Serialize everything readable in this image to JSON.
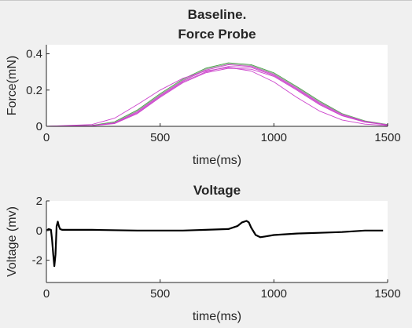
{
  "chart_data": [
    {
      "type": "line",
      "title": [
        "Baseline.",
        "Force Probe"
      ],
      "xlabel": "time(ms)",
      "ylabel": "Force(mN)",
      "xlim": [
        0,
        1500
      ],
      "ylim": [
        0,
        0.45
      ],
      "xticks": [
        0,
        500,
        1000,
        1500
      ],
      "yticks": [
        0,
        0.2,
        0.4
      ],
      "ytick_labels": [
        "0",
        "0.2",
        "0.4"
      ],
      "grid": false,
      "legend": "none",
      "series": [
        {
          "color": "#4aa34a",
          "x": [
            0,
            200,
            300,
            400,
            500,
            600,
            700,
            800,
            900,
            1000,
            1100,
            1200,
            1300,
            1400,
            1500
          ],
          "y": [
            0,
            0.005,
            0.025,
            0.09,
            0.18,
            0.26,
            0.32,
            0.35,
            0.34,
            0.295,
            0.22,
            0.14,
            0.07,
            0.03,
            0.01
          ]
        },
        {
          "color": "#9a9a9a",
          "x": [
            0,
            200,
            300,
            400,
            500,
            600,
            700,
            800,
            900,
            1000,
            1100,
            1200,
            1300,
            1400,
            1500
          ],
          "y": [
            0,
            0.004,
            0.02,
            0.085,
            0.175,
            0.255,
            0.315,
            0.345,
            0.335,
            0.29,
            0.215,
            0.135,
            0.068,
            0.028,
            0.009
          ]
        },
        {
          "color": "#cc44cc",
          "x": [
            0,
            200,
            300,
            400,
            500,
            600,
            700,
            800,
            900,
            1000,
            1100,
            1200,
            1300,
            1400,
            1500
          ],
          "y": [
            0,
            0.004,
            0.02,
            0.08,
            0.17,
            0.25,
            0.31,
            0.34,
            0.33,
            0.285,
            0.21,
            0.13,
            0.065,
            0.027,
            0.008
          ]
        },
        {
          "color": "#cc44cc",
          "x": [
            0,
            200,
            300,
            400,
            500,
            600,
            700,
            800,
            900,
            1000,
            1100,
            1200,
            1300,
            1400,
            1500
          ],
          "y": [
            0,
            0.003,
            0.018,
            0.075,
            0.165,
            0.245,
            0.3,
            0.33,
            0.325,
            0.28,
            0.205,
            0.125,
            0.06,
            0.025,
            0.008
          ]
        },
        {
          "color": "#cc44cc",
          "x": [
            0,
            200,
            300,
            400,
            500,
            600,
            700,
            800,
            900,
            1000,
            1100,
            1200,
            1300,
            1400,
            1500
          ],
          "y": [
            0,
            0.003,
            0.015,
            0.07,
            0.16,
            0.24,
            0.295,
            0.32,
            0.315,
            0.275,
            0.2,
            0.12,
            0.058,
            0.023,
            0.007
          ]
        },
        {
          "color": "#cc44cc",
          "x": [
            0,
            200,
            300,
            400,
            500,
            600,
            700,
            800,
            900,
            1000,
            1100,
            1200,
            1300,
            1400,
            1500
          ],
          "y": [
            0,
            0.01,
            0.045,
            0.12,
            0.2,
            0.265,
            0.305,
            0.325,
            0.305,
            0.245,
            0.16,
            0.085,
            0.035,
            0.012,
            0.004
          ]
        }
      ]
    },
    {
      "type": "line",
      "title": "Voltage",
      "xlabel": "time(ms)",
      "ylabel": "Voltage (mv)",
      "xlim": [
        0,
        1500
      ],
      "ylim": [
        -3.5,
        2
      ],
      "xticks": [
        0,
        500,
        1000,
        1500
      ],
      "yticks": [
        2,
        0,
        -2
      ],
      "ytick_labels": [
        "2",
        "0",
        "-2"
      ],
      "grid": false,
      "legend": "none",
      "series": [
        {
          "color": "#000000",
          "x": [
            0,
            10,
            20,
            25,
            30,
            35,
            40,
            45,
            50,
            55,
            60,
            70,
            100,
            200,
            400,
            600,
            800,
            840,
            860,
            880,
            890,
            900,
            920,
            940,
            960,
            1000,
            1100,
            1200,
            1300,
            1400,
            1480
          ],
          "y": [
            0,
            0.1,
            0.05,
            -0.6,
            -1.6,
            -2.4,
            -1.6,
            0.3,
            0.6,
            0.3,
            0.1,
            0.05,
            0.05,
            0.05,
            0.0,
            0.0,
            0.1,
            0.3,
            0.55,
            0.65,
            0.55,
            0.2,
            -0.3,
            -0.45,
            -0.4,
            -0.3,
            -0.2,
            -0.15,
            -0.1,
            0.0,
            0.0
          ]
        }
      ]
    }
  ]
}
